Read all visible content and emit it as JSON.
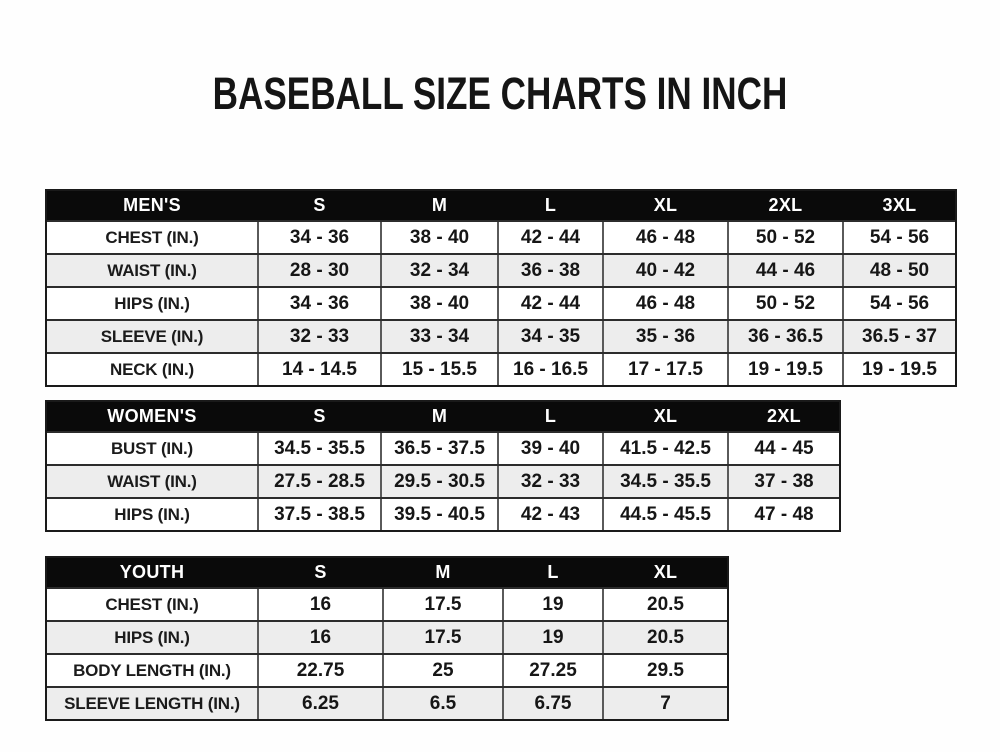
{
  "title": "BASEBALL SIZE CHARTS IN INCH",
  "colors": {
    "header_bg": "#0a0a0a",
    "header_text": "#ffffff",
    "alt_row_bg": "#ededed",
    "border_dark": "#1a1a1a",
    "text": "#161616"
  },
  "tables": [
    {
      "name": "mens",
      "header": [
        "MEN'S",
        "S",
        "M",
        "L",
        "XL",
        "2XL",
        "3XL"
      ],
      "rows": [
        {
          "label": "CHEST (IN.)",
          "values": [
            "34 - 36",
            "38 - 40",
            "42 - 44",
            "46 - 48",
            "50 - 52",
            "54 - 56"
          ]
        },
        {
          "label": "WAIST (IN.)",
          "values": [
            "28 - 30",
            "32 - 34",
            "36 - 38",
            "40 - 42",
            "44 - 46",
            "48 - 50"
          ]
        },
        {
          "label": "HIPS (IN.)",
          "values": [
            "34 - 36",
            "38 - 40",
            "42 - 44",
            "46 - 48",
            "50 - 52",
            "54 - 56"
          ]
        },
        {
          "label": "SLEEVE (IN.)",
          "values": [
            "32 - 33",
            "33 - 34",
            "34 - 35",
            "35 - 36",
            "36 - 36.5",
            "36.5 - 37"
          ]
        },
        {
          "label": "NECK (IN.)",
          "values": [
            "14 - 14.5",
            "15 - 15.5",
            "16 - 16.5",
            "17 - 17.5",
            "19 - 19.5",
            "19 - 19.5"
          ]
        }
      ]
    },
    {
      "name": "womens",
      "header": [
        "WOMEN'S",
        "S",
        "M",
        "L",
        "XL",
        "2XL"
      ],
      "rows": [
        {
          "label": "BUST (IN.)",
          "values": [
            "34.5 - 35.5",
            "36.5 - 37.5",
            "39 - 40",
            "41.5 - 42.5",
            "44 - 45"
          ]
        },
        {
          "label": "WAIST (IN.)",
          "values": [
            "27.5 - 28.5",
            "29.5 - 30.5",
            "32 - 33",
            "34.5 - 35.5",
            "37 - 38"
          ]
        },
        {
          "label": "HIPS (IN.)",
          "values": [
            "37.5 - 38.5",
            "39.5 - 40.5",
            "42 - 43",
            "44.5 - 45.5",
            "47 - 48"
          ]
        }
      ]
    },
    {
      "name": "youth",
      "header": [
        "YOUTH",
        "S",
        "M",
        "L",
        "XL"
      ],
      "rows": [
        {
          "label": "CHEST (IN.)",
          "values": [
            "16",
            "17.5",
            "19",
            "20.5"
          ]
        },
        {
          "label": "HIPS (IN.)",
          "values": [
            "16",
            "17.5",
            "19",
            "20.5"
          ]
        },
        {
          "label": "BODY LENGTH (IN.)",
          "values": [
            "22.75",
            "25",
            "27.25",
            "29.5"
          ]
        },
        {
          "label": "SLEEVE LENGTH (IN.)",
          "values": [
            "6.25",
            "6.5",
            "6.75",
            "7"
          ]
        }
      ]
    }
  ]
}
